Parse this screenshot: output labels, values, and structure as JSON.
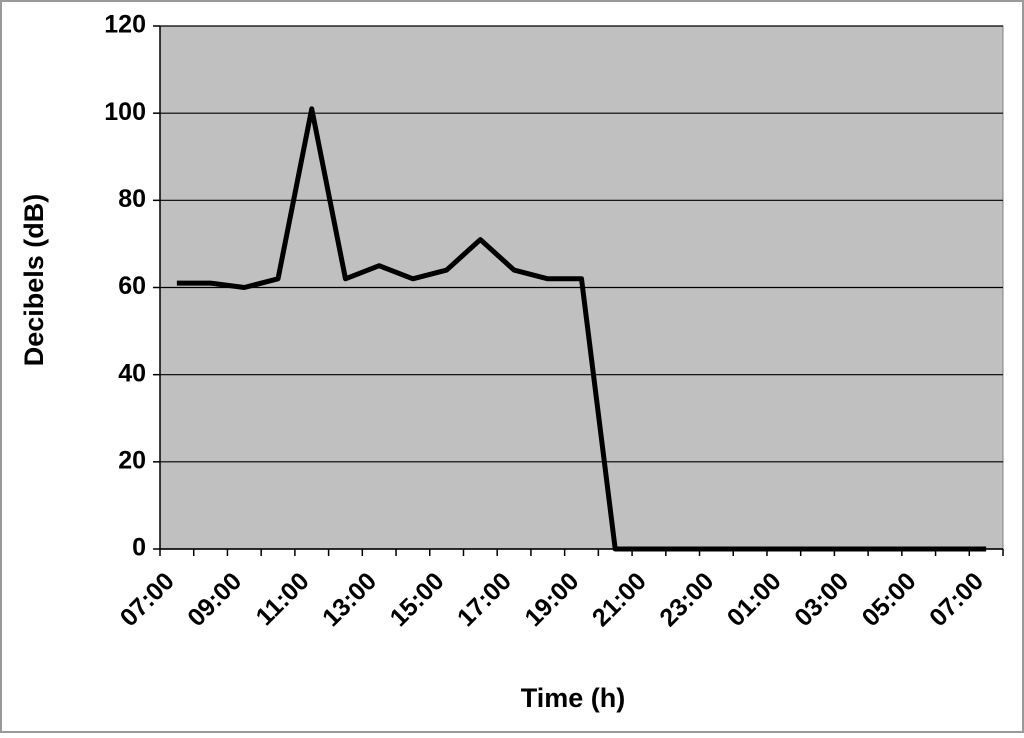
{
  "chart_data": {
    "type": "line",
    "x_label": "Time (h)",
    "y_label": "Decibels (dB)",
    "categories": [
      "07:00",
      null,
      "09:00",
      null,
      "11:00",
      null,
      "13:00",
      null,
      "15:00",
      null,
      "17:00",
      null,
      "19:00",
      null,
      "21:00",
      null,
      "23:00",
      null,
      "01:00",
      null,
      "03:00",
      null,
      "05:00",
      null,
      "07:00"
    ],
    "series": [
      {
        "color": "#000000",
        "values": [
          61,
          61,
          60,
          62,
          101,
          62,
          65,
          62,
          64,
          71,
          64,
          62,
          62,
          0,
          0,
          0,
          0,
          0,
          0,
          0,
          0,
          0,
          0,
          0,
          0
        ]
      }
    ],
    "ylim": [
      0,
      120
    ],
    "yticks": [
      0,
      20,
      40,
      60,
      80,
      100,
      120
    ],
    "grid": true,
    "background": "#c0c0c0"
  }
}
